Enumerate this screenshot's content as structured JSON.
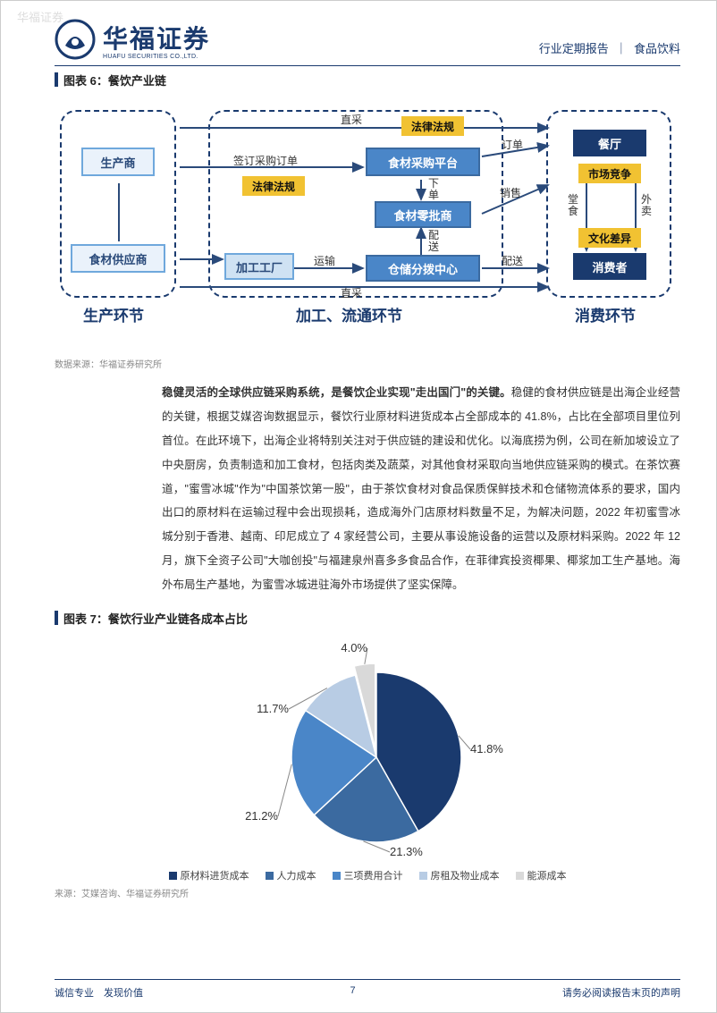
{
  "watermark": "华福证券",
  "header": {
    "company": "华福证券",
    "company_en": "HUAFU SECURITIES CO.,LTD.",
    "right_a": "行业定期报告",
    "right_b": "食品饮料"
  },
  "fig6": {
    "title": "图表 6：餐饮产业链",
    "source": "数据来源：华福证券研究所",
    "stages": {
      "s1": "生产环节",
      "s2": "加工、流通环节",
      "s3": "消费环节"
    },
    "nodes": {
      "producer": "生产商",
      "supplier": "食材供应商",
      "factory": "加工工厂",
      "platform": "食材采购平台",
      "retail": "食材零批商",
      "warehouse": "仓储分拨中心",
      "restaurant": "餐厅",
      "consumer": "消费者"
    },
    "tags": {
      "law1": "法律法规",
      "law2": "法律法规",
      "market": "市场竞争",
      "culture": "文化差异"
    },
    "labels": {
      "direct1": "直采",
      "direct2": "直采",
      "sign": "签订采购订单",
      "trans": "运输",
      "xiadan": "下\n单",
      "peisong": "配\n送",
      "order": "订单",
      "sale": "销售",
      "deliver": "配送",
      "dinein": "堂\n食",
      "takeout": "外\n卖"
    }
  },
  "paragraph": {
    "bold": "稳健灵活的全球供应链采购系统，是餐饮企业实现\"走出国门\"的关键。",
    "rest": "稳健的食材供应链是出海企业经营的关键，根据艾媒咨询数据显示，餐饮行业原材料进货成本占全部成本的 41.8%，占比在全部项目里位列首位。在此环境下，出海企业将特别关注对于供应链的建设和优化。以海底捞为例，公司在新加坡设立了中央厨房，负责制造和加工食材，包括肉类及蔬菜，对其他食材采取向当地供应链采购的模式。在茶饮赛道，\"蜜雪冰城\"作为\"中国茶饮第一股\"，由于茶饮食材对食品保质保鲜技术和仓储物流体系的要求，国内出口的原材料在运输过程中会出现损耗，造成海外门店原材料数量不足，为解决问题，2022 年初蜜雪冰城分别于香港、越南、印尼成立了 4 家经营公司，主要从事设施设备的运营以及原材料采购。2022 年 12 月，旗下全资子公司\"大咖创投\"与福建泉州喜多多食品合作，在菲律宾投资椰果、椰浆加工生产基地。海外布局生产基地，为蜜雪冰城进驻海外市场提供了坚实保障。"
  },
  "fig7": {
    "title": "图表 7：餐饮行业产业链各成本占比",
    "source": "来源：艾媒咨询、华福证券研究所",
    "slices": [
      {
        "label": "原材料进货成本",
        "value": 41.8,
        "pct": "41.8%",
        "color": "#1a3a6e"
      },
      {
        "label": "人力成本",
        "value": 21.3,
        "pct": "21.3%",
        "color": "#3b6aa0"
      },
      {
        "label": "三项费用合计",
        "value": 21.2,
        "pct": "21.2%",
        "color": "#4a86c8"
      },
      {
        "label": "房租及物业成本",
        "value": 11.7,
        "pct": "11.7%",
        "color": "#b8cce4"
      },
      {
        "label": "能源成本",
        "value": 4.0,
        "pct": "4.0%",
        "color": "#d9d9d9"
      }
    ],
    "title_fontsize": 13,
    "label_fontsize": 11
  },
  "footer": {
    "left": "诚信专业　发现价值",
    "page": "7",
    "right": "请务必阅读报告末页的声明"
  },
  "colors": {
    "brand": "#1a3a6e",
    "accent": "#f1c232"
  }
}
